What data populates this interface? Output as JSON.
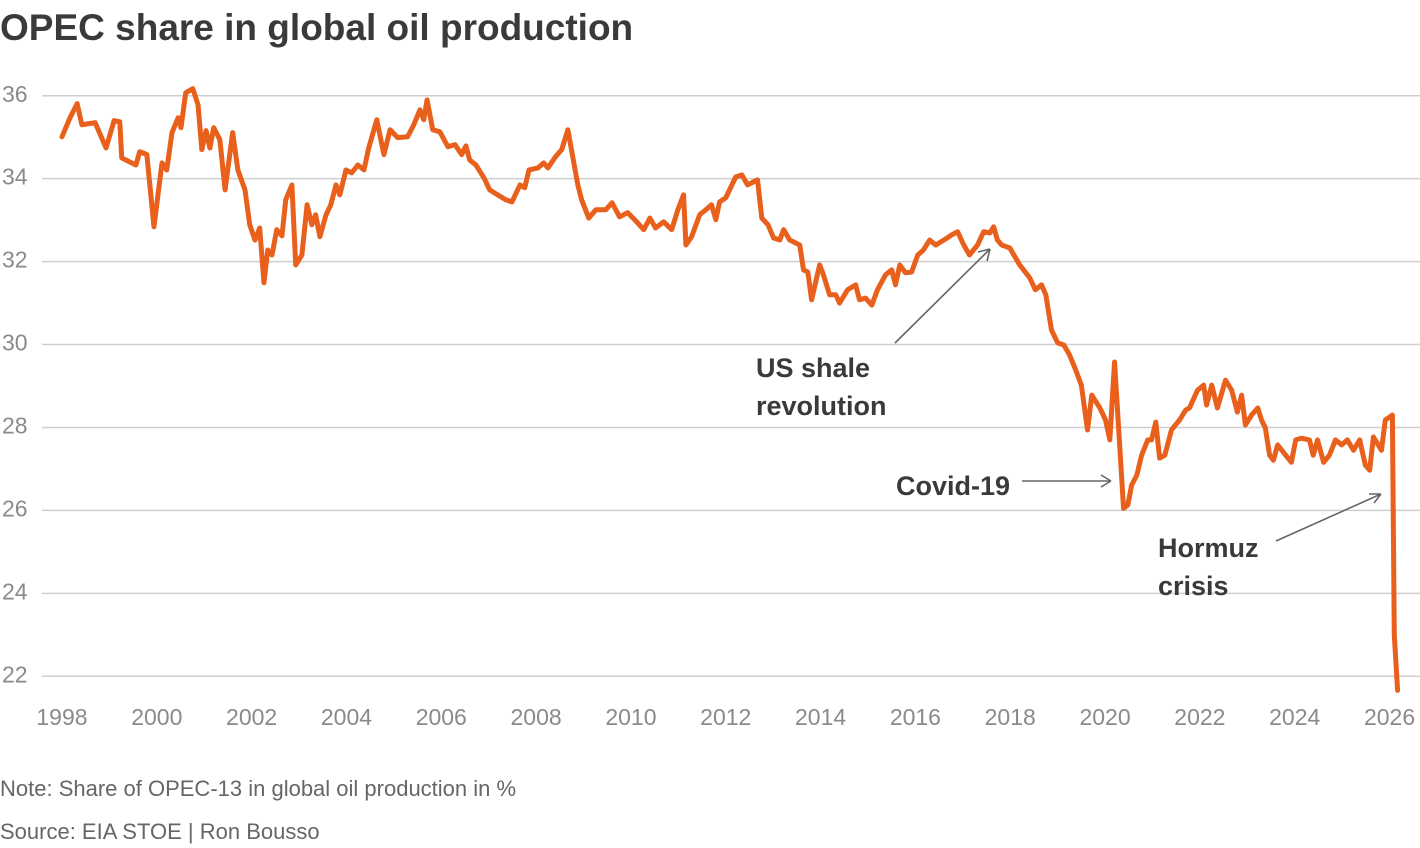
{
  "chart_data": {
    "type": "line",
    "title": "OPEC share in global oil production",
    "note": "Note: Share of OPEC-13 in global oil production in %",
    "source": "Source: EIA STOE | Ron Bousso",
    "annotations": [
      "US shale",
      "revolution",
      "Covid-19",
      "Hormuz",
      "crisis"
    ],
    "xlim": [
      1997.6,
      2026.6
    ],
    "ylim": [
      21.5,
      36.5
    ],
    "xticks": [
      1998,
      2000,
      2002,
      2004,
      2006,
      2008,
      2010,
      2012,
      2014,
      2016,
      2018,
      2020,
      2022,
      2024,
      2026
    ],
    "yticks": [
      22,
      24,
      26,
      28,
      30,
      32,
      34,
      36
    ],
    "grid": true,
    "x": [
      1998.0,
      1998.17,
      1998.32,
      1998.42,
      1998.7,
      1998.93,
      1999.1,
      1999.22,
      1999.26,
      1999.56,
      1999.64,
      1999.79,
      1999.94,
      2000.11,
      2000.21,
      2000.32,
      2000.45,
      2000.51,
      2000.61,
      2000.76,
      2000.87,
      2000.95,
      2001.04,
      2001.12,
      2001.2,
      2001.33,
      2001.44,
      2001.6,
      2001.71,
      2001.86,
      2001.96,
      2002.07,
      2002.17,
      2002.26,
      2002.34,
      2002.43,
      2002.53,
      2002.64,
      2002.72,
      2002.85,
      2002.93,
      2003.06,
      2003.17,
      2003.27,
      2003.35,
      2003.44,
      2003.57,
      2003.67,
      2003.78,
      2003.86,
      2003.99,
      2004.11,
      2004.24,
      2004.37,
      2004.47,
      2004.64,
      2004.79,
      2004.92,
      2005.08,
      2005.29,
      2005.42,
      2005.55,
      2005.63,
      2005.7,
      2005.82,
      2005.97,
      2006.14,
      2006.29,
      2006.43,
      2006.52,
      2006.6,
      2006.73,
      2006.9,
      2007.02,
      2007.19,
      2007.36,
      2007.49,
      2007.66,
      2007.76,
      2007.85,
      2008.04,
      2008.16,
      2008.25,
      2008.41,
      2008.54,
      2008.67,
      2008.88,
      2008.96,
      2009.11,
      2009.26,
      2009.47,
      2009.6,
      2009.76,
      2009.93,
      2010.08,
      2010.27,
      2010.4,
      2010.52,
      2010.69,
      2010.86,
      2010.99,
      2011.11,
      2011.16,
      2011.28,
      2011.45,
      2011.58,
      2011.7,
      2011.79,
      2011.87,
      2012.0,
      2012.13,
      2012.21,
      2012.34,
      2012.46,
      2012.55,
      2012.67,
      2012.76,
      2012.89,
      2013.01,
      2013.14,
      2013.22,
      2013.35,
      2013.56,
      2013.64,
      2013.73,
      2013.81,
      2013.98,
      2014.06,
      2014.19,
      2014.32,
      2014.4,
      2014.57,
      2014.74,
      2014.82,
      2014.95,
      2015.08,
      2015.2,
      2015.37,
      2015.5,
      2015.58,
      2015.67,
      2015.79,
      2015.92,
      2016.05,
      2016.17,
      2016.3,
      2016.43,
      2016.6,
      2016.76,
      2016.89,
      2017.02,
      2017.14,
      2017.31,
      2017.44,
      2017.57,
      2017.65,
      2017.73,
      2017.82,
      2017.99,
      2018.2,
      2018.41,
      2018.53,
      2018.66,
      2018.75,
      2018.87,
      2019.0,
      2019.13,
      2019.25,
      2019.38,
      2019.5,
      2019.63,
      2019.72,
      2019.89,
      2020.01,
      2020.1,
      2020.2,
      2020.39,
      2020.48,
      2020.56,
      2020.67,
      2020.77,
      2020.9,
      2020.98,
      2021.07,
      2021.15,
      2021.26,
      2021.4,
      2021.57,
      2021.7,
      2021.78,
      2021.95,
      2022.08,
      2022.14,
      2022.25,
      2022.37,
      2022.54,
      2022.67,
      2022.79,
      2022.88,
      2022.96,
      2023.09,
      2023.22,
      2023.3,
      2023.38,
      2023.47,
      2023.55,
      2023.64,
      2023.81,
      2023.93,
      2024.02,
      2024.14,
      2024.31,
      2024.39,
      2024.48,
      2024.61,
      2024.73,
      2024.86,
      2024.99,
      2025.11,
      2025.24,
      2025.37,
      2025.49,
      2025.58,
      2025.66,
      2025.83,
      2025.91,
      2026.06,
      2026.1,
      2026.17
    ],
    "series": [
      {
        "color": "#e8601c",
        "values": [
          35.01,
          35.47,
          35.81,
          35.3,
          35.35,
          34.74,
          35.4,
          35.37,
          34.5,
          34.33,
          34.65,
          34.58,
          32.84,
          34.38,
          34.21,
          35.11,
          35.47,
          35.23,
          36.07,
          36.17,
          35.78,
          34.7,
          35.16,
          34.74,
          35.23,
          34.94,
          33.73,
          35.11,
          34.21,
          33.73,
          32.89,
          32.52,
          32.81,
          31.49,
          32.28,
          32.16,
          32.77,
          32.62,
          33.49,
          33.85,
          31.92,
          32.16,
          33.37,
          32.89,
          33.13,
          32.6,
          33.13,
          33.37,
          33.85,
          33.61,
          34.21,
          34.14,
          34.33,
          34.21,
          34.74,
          35.42,
          34.58,
          35.18,
          34.99,
          35.01,
          35.3,
          35.66,
          35.42,
          35.9,
          35.18,
          35.13,
          34.77,
          34.82,
          34.58,
          34.79,
          34.45,
          34.33,
          34.02,
          33.73,
          33.61,
          33.49,
          33.44,
          33.85,
          33.78,
          34.21,
          34.26,
          34.38,
          34.26,
          34.53,
          34.7,
          35.18,
          33.85,
          33.49,
          33.05,
          33.25,
          33.25,
          33.42,
          33.08,
          33.18,
          33.01,
          32.77,
          33.05,
          32.81,
          32.96,
          32.77,
          33.25,
          33.61,
          32.4,
          32.6,
          33.13,
          33.25,
          33.37,
          33.01,
          33.44,
          33.54,
          33.85,
          34.04,
          34.09,
          33.85,
          33.9,
          33.97,
          33.05,
          32.89,
          32.57,
          32.52,
          32.77,
          32.52,
          32.4,
          31.8,
          31.75,
          31.08,
          31.92,
          31.68,
          31.2,
          31.2,
          31.0,
          31.32,
          31.44,
          31.08,
          31.12,
          30.95,
          31.32,
          31.68,
          31.8,
          31.44,
          31.92,
          31.73,
          31.75,
          32.16,
          32.28,
          32.52,
          32.4,
          32.52,
          32.64,
          32.72,
          32.4,
          32.16,
          32.4,
          32.72,
          32.69,
          32.84,
          32.52,
          32.4,
          32.33,
          31.92,
          31.61,
          31.32,
          31.44,
          31.2,
          30.35,
          30.04,
          29.99,
          29.75,
          29.39,
          29.02,
          27.94,
          28.78,
          28.47,
          28.18,
          27.7,
          29.58,
          26.05,
          26.13,
          26.61,
          26.85,
          27.33,
          27.7,
          27.7,
          28.13,
          27.26,
          27.33,
          27.94,
          28.18,
          28.42,
          28.47,
          28.9,
          29.02,
          28.54,
          29.02,
          28.47,
          29.14,
          28.9,
          28.37,
          28.78,
          28.06,
          28.3,
          28.47,
          28.18,
          27.99,
          27.33,
          27.21,
          27.58,
          27.33,
          27.16,
          27.7,
          27.74,
          27.7,
          27.33,
          27.7,
          27.16,
          27.33,
          27.7,
          27.58,
          27.7,
          27.45,
          27.7,
          27.09,
          26.97,
          27.77,
          27.45,
          28.18,
          28.3,
          22.99,
          21.66
        ]
      }
    ]
  }
}
